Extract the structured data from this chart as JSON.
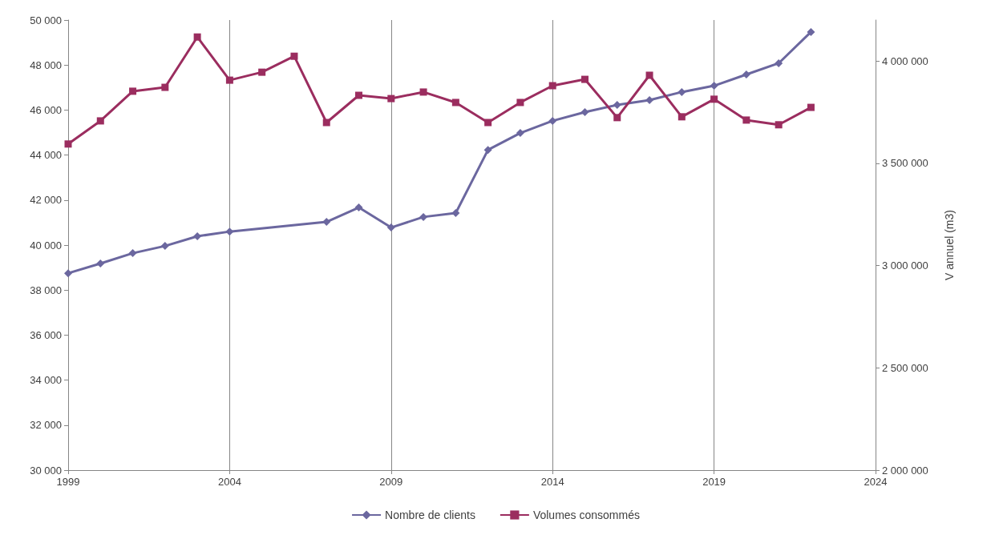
{
  "chart_data": {
    "type": "line",
    "y2label": "V annuel (m3)",
    "xlim": [
      1999,
      2024
    ],
    "xticks": [
      1999,
      2004,
      2009,
      2014,
      2019,
      2024
    ],
    "ylim": [
      30000,
      50000
    ],
    "yticks": [
      {
        "value": 30000,
        "label": "30 000"
      },
      {
        "value": 32000,
        "label": "32 000"
      },
      {
        "value": 34000,
        "label": "34 000"
      },
      {
        "value": 36000,
        "label": "36 000"
      },
      {
        "value": 38000,
        "label": "38 000"
      },
      {
        "value": 40000,
        "label": "40 000"
      },
      {
        "value": 42000,
        "label": "42 000"
      },
      {
        "value": 44000,
        "label": "44 000"
      },
      {
        "value": 46000,
        "label": "46 000"
      },
      {
        "value": 48000,
        "label": "48 000"
      },
      {
        "value": 50000,
        "label": "50 000"
      }
    ],
    "y2lim": [
      2000000,
      4200000
    ],
    "y2ticks": [
      {
        "value": 2000000,
        "label": "2 000 000"
      },
      {
        "value": 2500000,
        "label": "2 500 000"
      },
      {
        "value": 3000000,
        "label": "3 000 000"
      },
      {
        "value": 3500000,
        "label": "3 500 000"
      },
      {
        "value": 4000000,
        "label": "4 000 000"
      }
    ],
    "grid": "x",
    "legend": "bottom",
    "series": [
      {
        "name": "Nombre de clients",
        "color": "#6b679f",
        "marker": "diamond",
        "x": [
          1999,
          2000,
          2001,
          2002,
          2003,
          2004,
          2007,
          2008,
          2009,
          2010,
          2011,
          2012,
          2013,
          2014,
          2015,
          2016,
          2017,
          2018,
          2019,
          2020,
          2021,
          2022
        ],
        "values": [
          38750,
          39180,
          39640,
          39960,
          40390,
          40600,
          41030,
          41670,
          40780,
          41250,
          41420,
          44230,
          44980,
          45520,
          45910,
          46230,
          46440,
          46800,
          47080,
          47580,
          48080,
          49470
        ]
      },
      {
        "name": "Volumes consommés",
        "color": "#9b2d5f",
        "marker": "square",
        "axis": "y2",
        "x": [
          1999,
          2000,
          2001,
          2002,
          2003,
          2004,
          2005,
          2006,
          2007,
          2008,
          2009,
          2010,
          2011,
          2012,
          2013,
          2014,
          2015,
          2016,
          2017,
          2018,
          2019,
          2020,
          2021,
          2022
        ],
        "values": [
          3594000,
          3707000,
          3852000,
          3871000,
          4117000,
          3906000,
          3945000,
          4023000,
          3699000,
          3832000,
          3816000,
          3848000,
          3797000,
          3699000,
          3797000,
          3879000,
          3910000,
          3723000,
          3930000,
          3727000,
          3813000,
          3711000,
          3688000,
          3773000
        ]
      }
    ]
  }
}
